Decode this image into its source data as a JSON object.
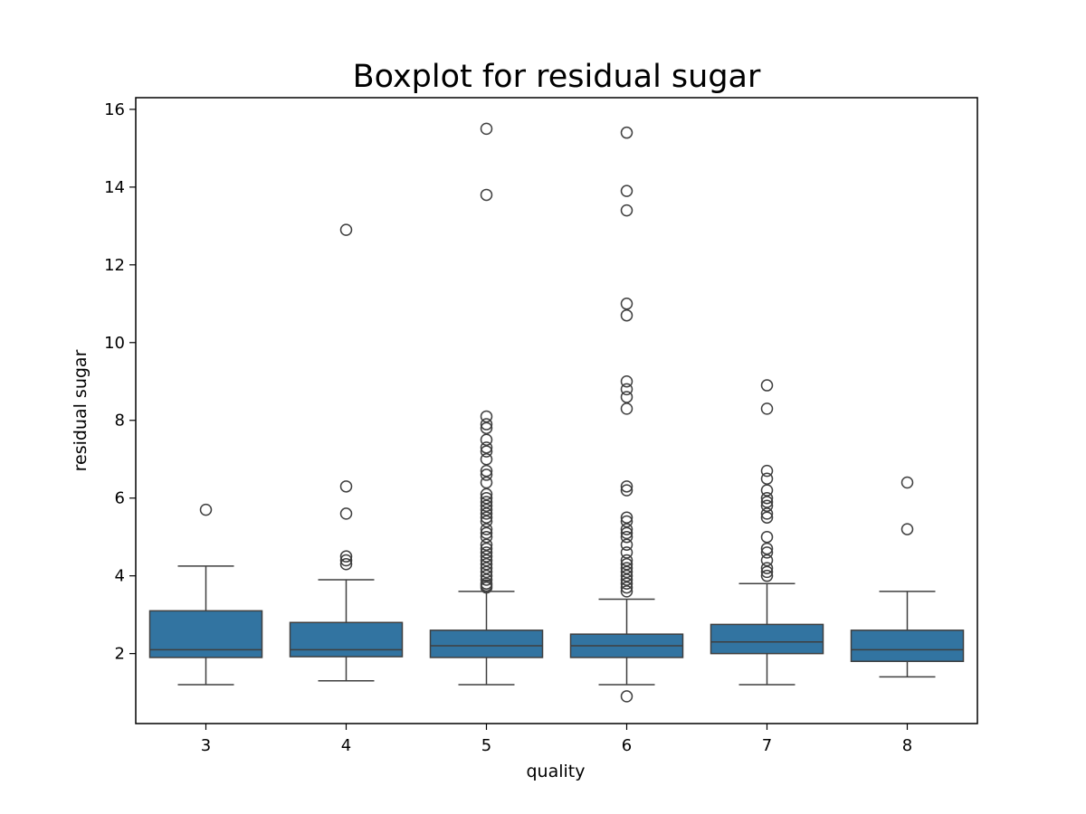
{
  "chart_data": {
    "type": "boxplot",
    "title": "Boxplot for residual sugar",
    "xlabel": "quality",
    "ylabel": "residual sugar",
    "ylim": [
      0.2,
      16.3
    ],
    "yticks": [
      "2",
      "4",
      "6",
      "8",
      "10",
      "12",
      "14",
      "16"
    ],
    "grid": false,
    "legend": "none",
    "colors": {
      "box": "#3274a1",
      "line": "#3f3f3f",
      "axes": "#000000"
    },
    "categories": [
      "3",
      "4",
      "5",
      "6",
      "7",
      "8"
    ],
    "boxes": [
      {
        "category": "3",
        "whisker_low": 1.2,
        "q1": 1.9,
        "median": 2.1,
        "q3": 3.1,
        "whisker_high": 4.25,
        "outliers": [
          5.7
        ]
      },
      {
        "category": "4",
        "whisker_low": 1.3,
        "q1": 1.92,
        "median": 2.1,
        "q3": 2.8,
        "whisker_high": 3.9,
        "outliers": [
          4.3,
          4.4,
          4.5,
          5.6,
          6.3,
          12.9
        ]
      },
      {
        "category": "5",
        "whisker_low": 1.2,
        "q1": 1.9,
        "median": 2.2,
        "q3": 2.6,
        "whisker_high": 3.6,
        "outliers": [
          3.7,
          3.75,
          3.8,
          3.9,
          4.0,
          4.1,
          4.2,
          4.3,
          4.4,
          4.5,
          4.6,
          4.7,
          4.8,
          5.0,
          5.1,
          5.2,
          5.4,
          5.5,
          5.6,
          5.7,
          5.8,
          5.9,
          6.0,
          6.1,
          6.4,
          6.6,
          6.7,
          7.0,
          7.2,
          7.3,
          7.5,
          7.8,
          7.9,
          8.1,
          13.8,
          15.5
        ]
      },
      {
        "category": "6",
        "whisker_low": 1.2,
        "q1": 1.9,
        "median": 2.2,
        "q3": 2.5,
        "whisker_high": 3.4,
        "outliers": [
          0.9,
          3.6,
          3.7,
          3.8,
          3.9,
          4.0,
          4.1,
          4.2,
          4.3,
          4.4,
          4.6,
          4.8,
          5.0,
          5.1,
          5.2,
          5.4,
          5.5,
          6.2,
          6.3,
          8.3,
          8.6,
          8.8,
          9.0,
          10.7,
          11.0,
          13.4,
          13.9,
          15.4
        ]
      },
      {
        "category": "7",
        "whisker_low": 1.2,
        "q1": 2.0,
        "median": 2.3,
        "q3": 2.75,
        "whisker_high": 3.8,
        "outliers": [
          4.0,
          4.1,
          4.2,
          4.4,
          4.6,
          4.7,
          5.0,
          5.5,
          5.6,
          5.8,
          5.9,
          6.0,
          6.2,
          6.5,
          6.7,
          8.3,
          8.9
        ]
      },
      {
        "category": "8",
        "whisker_low": 1.4,
        "q1": 1.8,
        "median": 2.1,
        "q3": 2.6,
        "whisker_high": 3.6,
        "outliers": [
          5.2,
          6.4
        ]
      }
    ]
  }
}
